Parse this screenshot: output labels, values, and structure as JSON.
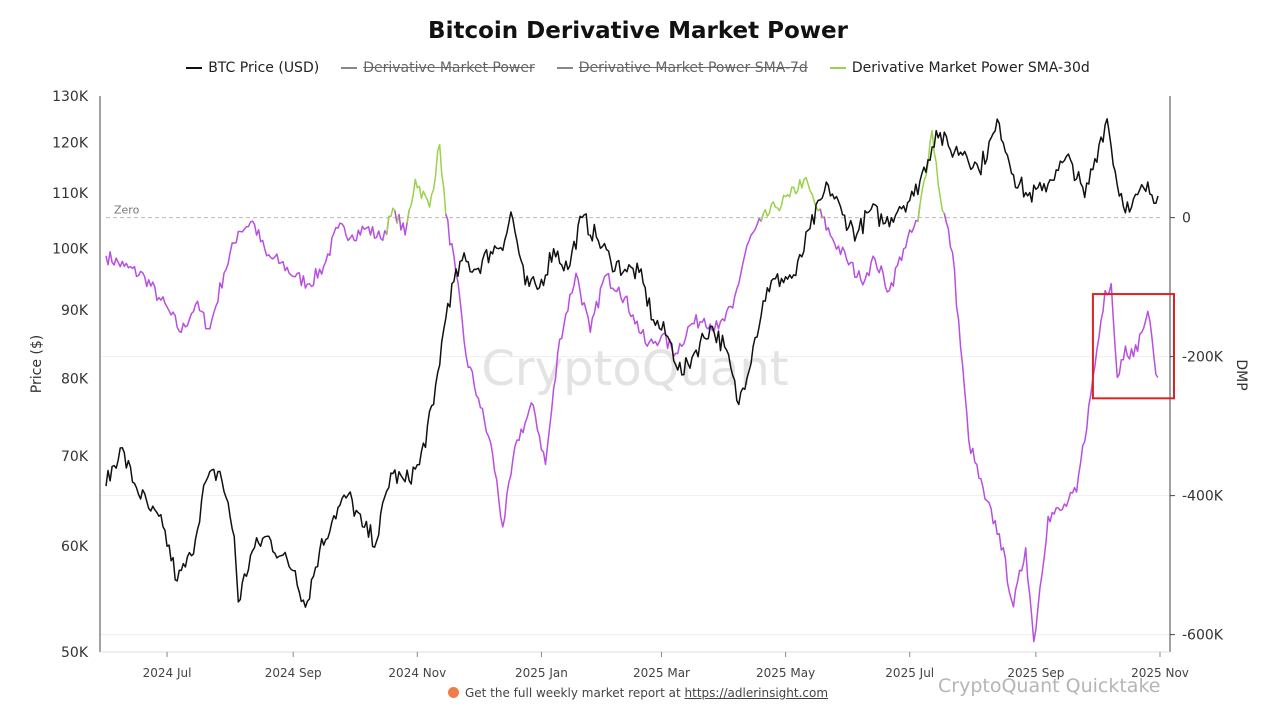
{
  "header": {
    "title": "Bitcoin Derivative Market Power"
  },
  "legend": [
    {
      "label": "BTC Price (USD)",
      "color": "#111111",
      "hidden": false
    },
    {
      "label": "Derivative Market Power",
      "color": "#888888",
      "hidden": true
    },
    {
      "label": "Derivative Market Power SMA-7d",
      "color": "#888888",
      "hidden": true
    },
    {
      "label": "Derivative Market Power SMA-30d",
      "color": "#9ad24c",
      "hidden": false
    }
  ],
  "watermark": "CryptoQuant",
  "footer": {
    "text": "Get the full weekly market report at",
    "link": "https://adlerinsight.com"
  },
  "credit": "CryptoQuant Quicktake",
  "chart_data": {
    "type": "line",
    "title": "Bitcoin Derivative Market Power",
    "xlabel": "",
    "x_ticks": [
      "2024 Jul",
      "2024 Sep",
      "2024 Nov",
      "2025 Jan",
      "2025 Mar",
      "2025 May",
      "2025 Jul",
      "2025 Sep",
      "2025 Nov"
    ],
    "x_range": [
      "2024-06-01",
      "2025-11-01"
    ],
    "y_left": {
      "label": "Price ($)",
      "scale": "log",
      "range": [
        50000,
        130000
      ],
      "ticks": [
        50000,
        60000,
        70000,
        80000,
        90000,
        100000,
        110000,
        120000,
        130000
      ],
      "tick_labels": [
        "50K",
        "60K",
        "70K",
        "80K",
        "90K",
        "100K",
        "110K",
        "120K",
        "130K"
      ]
    },
    "y_right": {
      "label": "DMP",
      "range": [
        -625,
        175
      ],
      "ticks": [
        0,
        -200,
        -400,
        -600
      ],
      "tick_labels": [
        "0",
        "-200K",
        "-400K",
        "-600K"
      ]
    },
    "zero_line_label": "Zero",
    "colors": {
      "price": "#111111",
      "dmp_positive": "#9ad24c",
      "dmp_negative": "#b84fe0",
      "zero_line": "#bbbbbb",
      "highlight_box": "#dd2222"
    },
    "highlight_box": {
      "from": "2025-10-01",
      "to": "2025-11-01",
      "dmp_top": -110,
      "dmp_bottom": -260
    },
    "series": [
      {
        "name": "BTC Price (USD)",
        "axis": "left",
        "points": [
          [
            "2024-06-01",
            66500
          ],
          [
            "2024-06-08",
            71000
          ],
          [
            "2024-06-15",
            66800
          ],
          [
            "2024-06-22",
            64000
          ],
          [
            "2024-06-29",
            62000
          ],
          [
            "2024-07-06",
            56500
          ],
          [
            "2024-07-13",
            59000
          ],
          [
            "2024-07-20",
            67000
          ],
          [
            "2024-07-27",
            68200
          ],
          [
            "2024-08-03",
            61000
          ],
          [
            "2024-08-05",
            54500
          ],
          [
            "2024-08-12",
            59500
          ],
          [
            "2024-08-19",
            61000
          ],
          [
            "2024-08-26",
            59000
          ],
          [
            "2024-09-02",
            57500
          ],
          [
            "2024-09-07",
            54000
          ],
          [
            "2024-09-14",
            59500
          ],
          [
            "2024-09-21",
            63200
          ],
          [
            "2024-09-28",
            65500
          ],
          [
            "2024-10-05",
            62000
          ],
          [
            "2024-10-12",
            60500
          ],
          [
            "2024-10-19",
            68000
          ],
          [
            "2024-10-26",
            67000
          ],
          [
            "2024-11-02",
            69000
          ],
          [
            "2024-11-09",
            76500
          ],
          [
            "2024-11-16",
            91000
          ],
          [
            "2024-11-23",
            98000
          ],
          [
            "2024-11-30",
            96500
          ],
          [
            "2024-12-07",
            99500
          ],
          [
            "2024-12-14",
            101500
          ],
          [
            "2024-12-17",
            106500
          ],
          [
            "2024-12-24",
            94000
          ],
          [
            "2024-12-31",
            93500
          ],
          [
            "2025-01-07",
            100000
          ],
          [
            "2025-01-14",
            96500
          ],
          [
            "2025-01-21",
            105500
          ],
          [
            "2025-01-28",
            102000
          ],
          [
            "2025-02-04",
            98000
          ],
          [
            "2025-02-11",
            96500
          ],
          [
            "2025-02-18",
            96000
          ],
          [
            "2025-02-25",
            88500
          ],
          [
            "2025-03-04",
            86000
          ],
          [
            "2025-03-11",
            80500
          ],
          [
            "2025-03-18",
            84000
          ],
          [
            "2025-03-25",
            87500
          ],
          [
            "2025-04-01",
            84500
          ],
          [
            "2025-04-08",
            76500
          ],
          [
            "2025-04-15",
            84500
          ],
          [
            "2025-04-22",
            93500
          ],
          [
            "2025-04-29",
            95000
          ],
          [
            "2025-05-06",
            95500
          ],
          [
            "2025-05-13",
            103500
          ],
          [
            "2025-05-22",
            111500
          ],
          [
            "2025-05-29",
            106000
          ],
          [
            "2025-06-05",
            102500
          ],
          [
            "2025-06-12",
            107000
          ],
          [
            "2025-06-19",
            104500
          ],
          [
            "2025-06-26",
            107500
          ],
          [
            "2025-07-03",
            109500
          ],
          [
            "2025-07-10",
            116500
          ],
          [
            "2025-07-14",
            122500
          ],
          [
            "2025-07-21",
            118500
          ],
          [
            "2025-07-28",
            118200
          ],
          [
            "2025-08-04",
            114500
          ],
          [
            "2025-08-14",
            124000
          ],
          [
            "2025-08-21",
            113500
          ],
          [
            "2025-08-28",
            109500
          ],
          [
            "2025-09-04",
            110500
          ],
          [
            "2025-09-11",
            114500
          ],
          [
            "2025-09-18",
            116500
          ],
          [
            "2025-09-25",
            109200
          ],
          [
            "2025-10-02",
            119500
          ],
          [
            "2025-10-06",
            125000
          ],
          [
            "2025-10-11",
            111500
          ],
          [
            "2025-10-17",
            106500
          ],
          [
            "2025-10-24",
            111000
          ],
          [
            "2025-10-31",
            109500
          ]
        ]
      },
      {
        "name": "Derivative Market Power SMA-30d",
        "axis": "right",
        "points": [
          [
            "2024-06-01",
            -55
          ],
          [
            "2024-06-10",
            -70
          ],
          [
            "2024-06-20",
            -85
          ],
          [
            "2024-06-27",
            -115
          ],
          [
            "2024-07-03",
            -140
          ],
          [
            "2024-07-08",
            -165
          ],
          [
            "2024-07-15",
            -125
          ],
          [
            "2024-07-22",
            -160
          ],
          [
            "2024-07-29",
            -80
          ],
          [
            "2024-08-05",
            -20
          ],
          [
            "2024-08-12",
            -5
          ],
          [
            "2024-08-19",
            -55
          ],
          [
            "2024-08-26",
            -65
          ],
          [
            "2024-09-02",
            -85
          ],
          [
            "2024-09-09",
            -95
          ],
          [
            "2024-09-16",
            -70
          ],
          [
            "2024-09-23",
            -15
          ],
          [
            "2024-09-30",
            -25
          ],
          [
            "2024-10-07",
            -15
          ],
          [
            "2024-10-14",
            -30
          ],
          [
            "2024-10-21",
            10
          ],
          [
            "2024-10-26",
            -25
          ],
          [
            "2024-10-31",
            55
          ],
          [
            "2024-11-07",
            15
          ],
          [
            "2024-11-12",
            105
          ],
          [
            "2024-11-15",
            5
          ],
          [
            "2024-11-20",
            -80
          ],
          [
            "2024-11-25",
            -200
          ],
          [
            "2024-12-01",
            -260
          ],
          [
            "2024-12-08",
            -340
          ],
          [
            "2024-12-13",
            -445
          ],
          [
            "2024-12-20",
            -320
          ],
          [
            "2024-12-28",
            -270
          ],
          [
            "2025-01-03",
            -355
          ],
          [
            "2025-01-10",
            -175
          ],
          [
            "2025-01-18",
            -80
          ],
          [
            "2025-01-25",
            -165
          ],
          [
            "2025-02-01",
            -85
          ],
          [
            "2025-02-08",
            -100
          ],
          [
            "2025-02-15",
            -140
          ],
          [
            "2025-02-22",
            -185
          ],
          [
            "2025-03-01",
            -170
          ],
          [
            "2025-03-08",
            -195
          ],
          [
            "2025-03-15",
            -155
          ],
          [
            "2025-03-22",
            -145
          ],
          [
            "2025-03-29",
            -160
          ],
          [
            "2025-04-05",
            -130
          ],
          [
            "2025-04-12",
            -40
          ],
          [
            "2025-04-19",
            -5
          ],
          [
            "2025-04-26",
            15
          ],
          [
            "2025-05-03",
            30
          ],
          [
            "2025-05-10",
            55
          ],
          [
            "2025-05-17",
            10
          ],
          [
            "2025-05-24",
            -30
          ],
          [
            "2025-05-31",
            -60
          ],
          [
            "2025-06-07",
            -90
          ],
          [
            "2025-06-14",
            -60
          ],
          [
            "2025-06-21",
            -105
          ],
          [
            "2025-06-28",
            -45
          ],
          [
            "2025-07-05",
            -5
          ],
          [
            "2025-07-12",
            125
          ],
          [
            "2025-07-16",
            30
          ],
          [
            "2025-07-22",
            -50
          ],
          [
            "2025-07-30",
            -320
          ],
          [
            "2025-08-07",
            -405
          ],
          [
            "2025-08-14",
            -455
          ],
          [
            "2025-08-21",
            -560
          ],
          [
            "2025-08-27",
            -475
          ],
          [
            "2025-08-31",
            -610
          ],
          [
            "2025-09-07",
            -430
          ],
          [
            "2025-09-14",
            -420
          ],
          [
            "2025-09-21",
            -395
          ],
          [
            "2025-09-28",
            -255
          ],
          [
            "2025-10-05",
            -105
          ],
          [
            "2025-10-08",
            -95
          ],
          [
            "2025-10-11",
            -230
          ],
          [
            "2025-10-15",
            -185
          ],
          [
            "2025-10-19",
            -200
          ],
          [
            "2025-10-23",
            -165
          ],
          [
            "2025-10-26",
            -135
          ],
          [
            "2025-10-29",
            -200
          ],
          [
            "2025-10-31",
            -230
          ]
        ]
      }
    ]
  }
}
